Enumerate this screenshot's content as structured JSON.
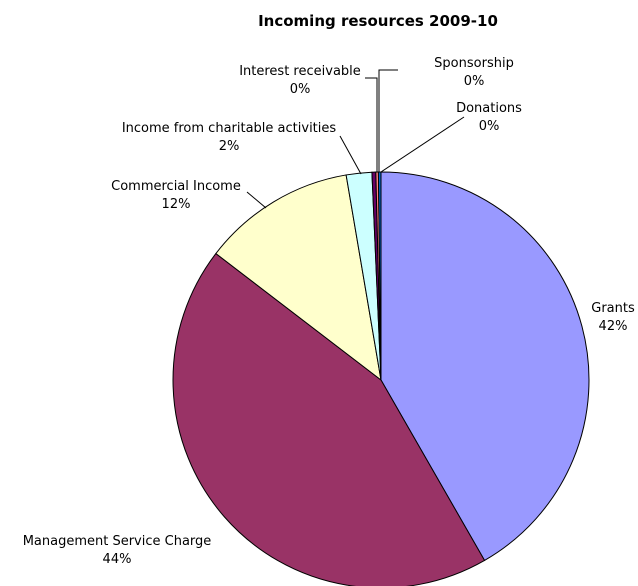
{
  "chart_data": {
    "type": "pie",
    "title": "Incoming resources 2009-10",
    "slices": [
      {
        "name": "Grants",
        "value": 42,
        "label": "42%",
        "color": "#9999FF"
      },
      {
        "name": "Management Service Charge",
        "value": 44,
        "label": "44%",
        "color": "#993366"
      },
      {
        "name": "Commercial Income",
        "value": 12,
        "label": "12%",
        "color": "#FFFFCC"
      },
      {
        "name": "Income from charitable activities",
        "value": 2,
        "label": "2%",
        "color": "#CCFFFF"
      },
      {
        "name": "Interest receivable",
        "value": 0.3,
        "label": "0%",
        "color": "#660066"
      },
      {
        "name": "Sponsorship",
        "value": 0.2,
        "label": "0%",
        "color": "#FF8080"
      },
      {
        "name": "Donations",
        "value": 0.2,
        "label": "0%",
        "color": "#0066CC"
      }
    ],
    "start_angle": "12 o'clock",
    "direction": "clockwise",
    "legend": "none"
  }
}
